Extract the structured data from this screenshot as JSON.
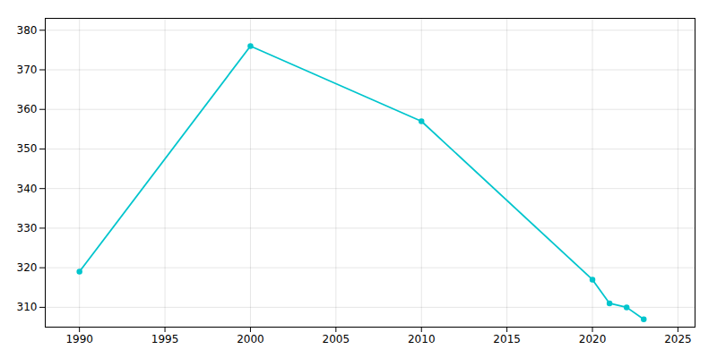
{
  "chart_data": {
    "type": "line",
    "x": [
      1990,
      2000,
      2010,
      2020,
      2021,
      2022,
      2023
    ],
    "values": [
      319,
      376,
      357,
      317,
      311,
      310,
      307
    ],
    "color": "#00C5CD",
    "marker": "o",
    "xlim": [
      1988,
      2026
    ],
    "ylim": [
      305,
      383
    ],
    "xticks": [
      1990,
      1995,
      2000,
      2005,
      2010,
      2015,
      2020,
      2025
    ],
    "yticks": [
      310,
      320,
      330,
      340,
      350,
      360,
      370,
      380
    ],
    "grid": true
  }
}
